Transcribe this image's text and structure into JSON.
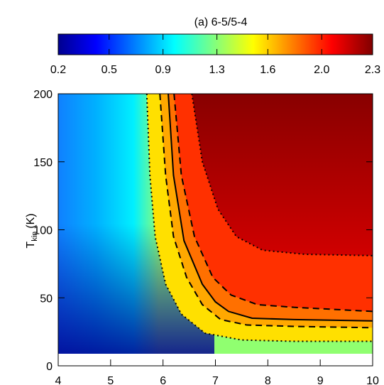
{
  "chart_data": {
    "type": "contour",
    "title": "(a) 6-5/5-4",
    "colorbar": {
      "lim": [
        0.2,
        2.3
      ],
      "ticks": [
        0.2,
        {
          "value": 0.54,
          "label": "0.5"
        },
        0.9,
        {
          "value": 1.26,
          "label": "1.3"
        },
        1.6,
        {
          "value": 1.96,
          "label": "2.0"
        },
        2.3
      ]
    },
    "xlim": [
      4,
      10
    ],
    "xticks": [
      4,
      5,
      6,
      7,
      8,
      9,
      10
    ],
    "ylim": [
      0,
      200
    ],
    "yticks": [
      0,
      50,
      100,
      150,
      200
    ],
    "ylabel": {
      "text": "T",
      "sub": "kin",
      "unit": "(K)"
    },
    "contours": [
      {
        "style": "dotted",
        "color": "#000000",
        "fill": "#ffe000",
        "x": [
          5.69,
          5.75,
          5.85,
          6.05,
          6.35,
          6.8,
          7.5,
          8.5,
          10
        ],
        "y": [
          200,
          140,
          95,
          60,
          38,
          24,
          19,
          18,
          18
        ]
      },
      {
        "style": "dashed",
        "color": "#000000",
        "fill": "#ffa800",
        "x": [
          5.94,
          6.05,
          6.2,
          6.45,
          6.75,
          7.1,
          7.6,
          8.5,
          10
        ],
        "y": [
          200,
          140,
          95,
          65,
          45,
          34,
          30,
          29,
          28
        ]
      },
      {
        "style": "solid",
        "color": "#000000",
        "fill": "#ff7000",
        "x": [
          6.1,
          6.2,
          6.4,
          6.75,
          7.0,
          7.25,
          7.7,
          8.5,
          10
        ],
        "y": [
          200,
          140,
          92,
          60,
          47,
          40,
          35,
          34,
          33
        ]
      },
      {
        "style": "dashed",
        "color": "#000000",
        "fill": "#ff3000",
        "x": [
          6.21,
          6.35,
          6.6,
          6.95,
          7.3,
          7.8,
          8.5,
          10
        ],
        "y": [
          200,
          140,
          95,
          65,
          52,
          45,
          43,
          40
        ]
      },
      {
        "style": "dotted",
        "color": "#000000",
        "fill": "#c80000",
        "x": [
          6.55,
          6.75,
          7.05,
          7.4,
          7.9,
          8.7,
          10
        ],
        "y": [
          200,
          150,
          115,
          95,
          85,
          82,
          81
        ]
      }
    ]
  }
}
